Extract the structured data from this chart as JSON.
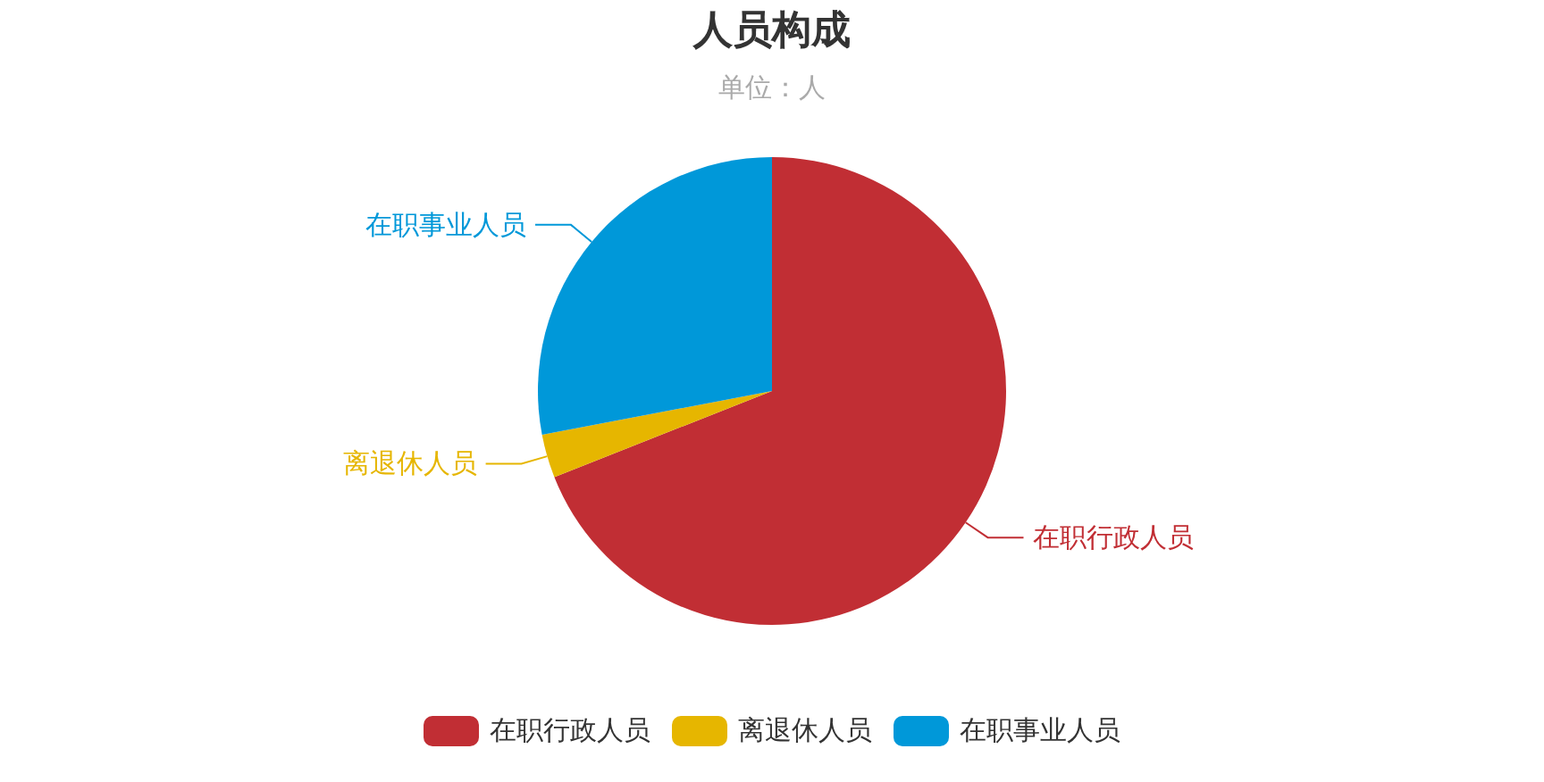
{
  "chart_data": {
    "type": "pie",
    "title": "人员构成",
    "subtitle": "单位：人",
    "categories": [
      "在职行政人员",
      "离退休人员",
      "在职事业人员"
    ],
    "values": [
      69,
      3,
      28
    ],
    "colors": [
      "#c12e34",
      "#e6b600",
      "#0098d9"
    ],
    "legend": "bottom"
  }
}
